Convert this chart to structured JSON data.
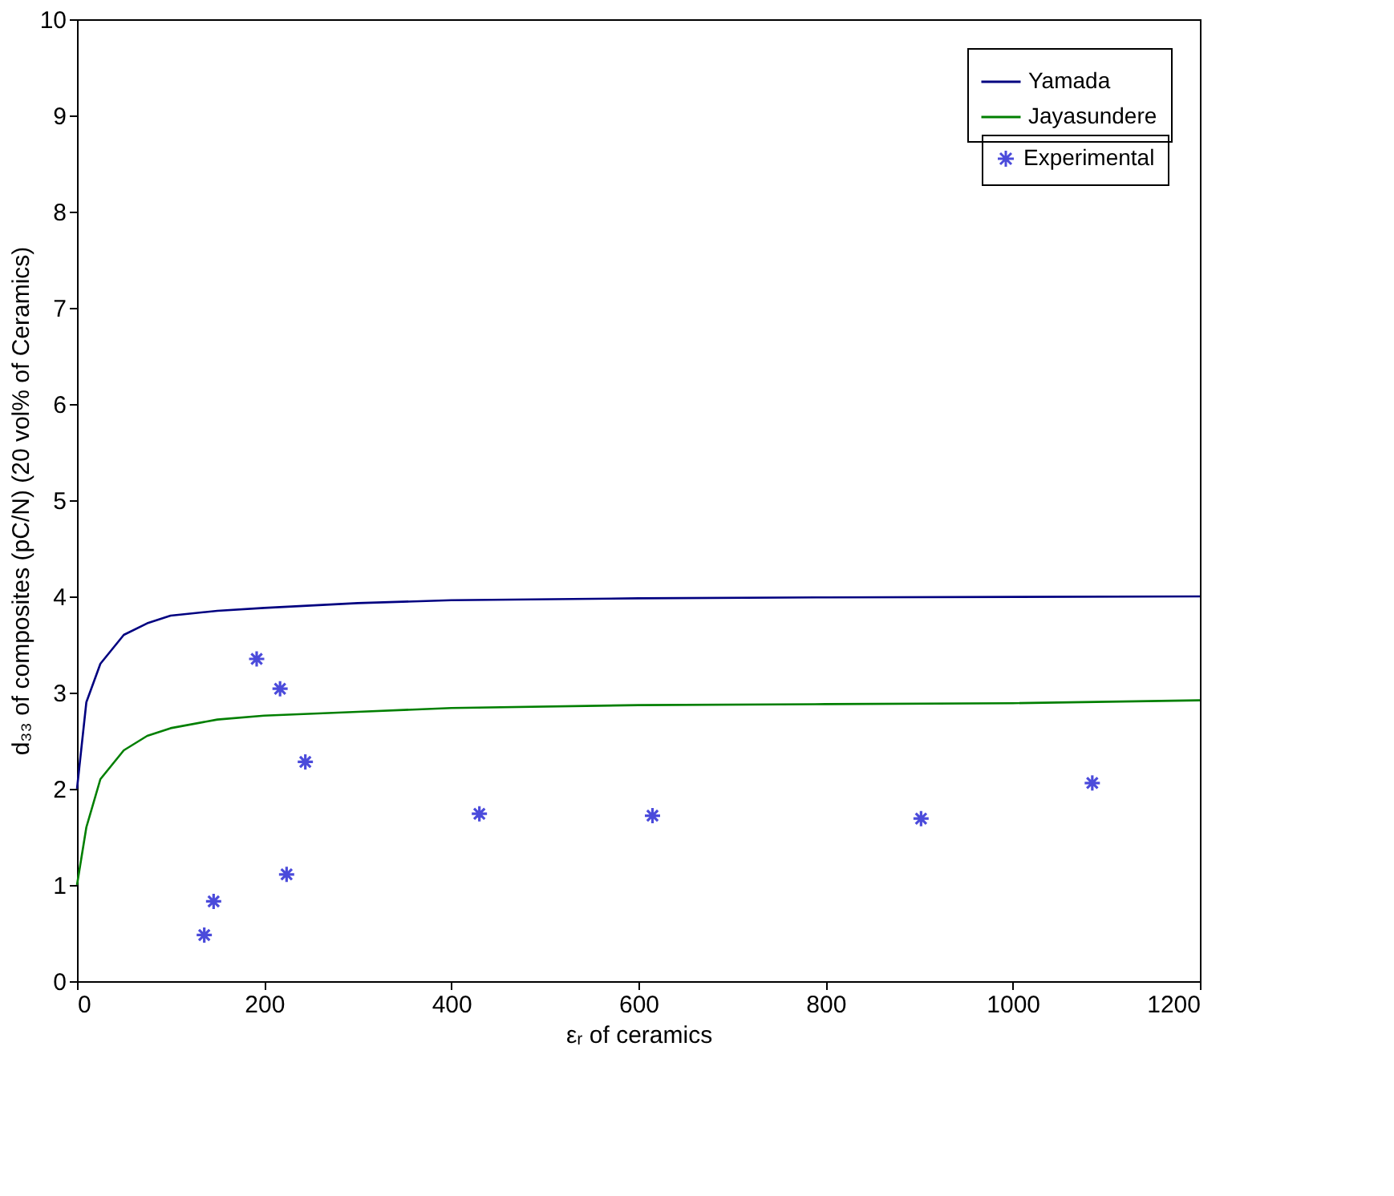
{
  "chart_data": {
    "type": "line",
    "xlabel": "εᵣ of ceramics",
    "ylabel": "d₃₃ of composites (pC/N) (20 vol% of Ceramics)",
    "xlim": [
      0,
      1200
    ],
    "ylim": [
      0,
      10
    ],
    "xticks": [
      0,
      200,
      400,
      600,
      800,
      1000,
      1200
    ],
    "yticks": [
      0,
      1,
      2,
      3,
      4,
      5,
      6,
      7,
      8,
      9,
      10
    ],
    "grid": false,
    "legend": "top right",
    "series": [
      {
        "name": "Yamada",
        "color": "#000080",
        "line_style": "solid",
        "marker": "none",
        "x": [
          0,
          10,
          25,
          50,
          75,
          100,
          150,
          200,
          300,
          400,
          600,
          800,
          1200
        ],
        "values": [
          2.0,
          2.9,
          3.3,
          3.6,
          3.72,
          3.8,
          3.85,
          3.88,
          3.93,
          3.96,
          3.98,
          3.99,
          4.0
        ]
      },
      {
        "name": "Jayasundere",
        "color": "#007f00",
        "line_style": "solid",
        "marker": "none",
        "x": [
          0,
          10,
          25,
          50,
          75,
          100,
          150,
          200,
          300,
          400,
          600,
          800,
          1000,
          1200
        ],
        "values": [
          1.0,
          1.6,
          2.1,
          2.4,
          2.55,
          2.63,
          2.72,
          2.76,
          2.8,
          2.84,
          2.87,
          2.88,
          2.89,
          2.92
        ]
      },
      {
        "name": "Experimental",
        "type": "scatter",
        "color": "#0000cc",
        "marker": "cross",
        "x": [
          136,
          146,
          192,
          217,
          224,
          244,
          430,
          615,
          902,
          1085
        ],
        "values": [
          0.48,
          0.83,
          3.35,
          3.04,
          1.11,
          2.28,
          1.74,
          1.72,
          1.69,
          2.06
        ]
      }
    ]
  }
}
